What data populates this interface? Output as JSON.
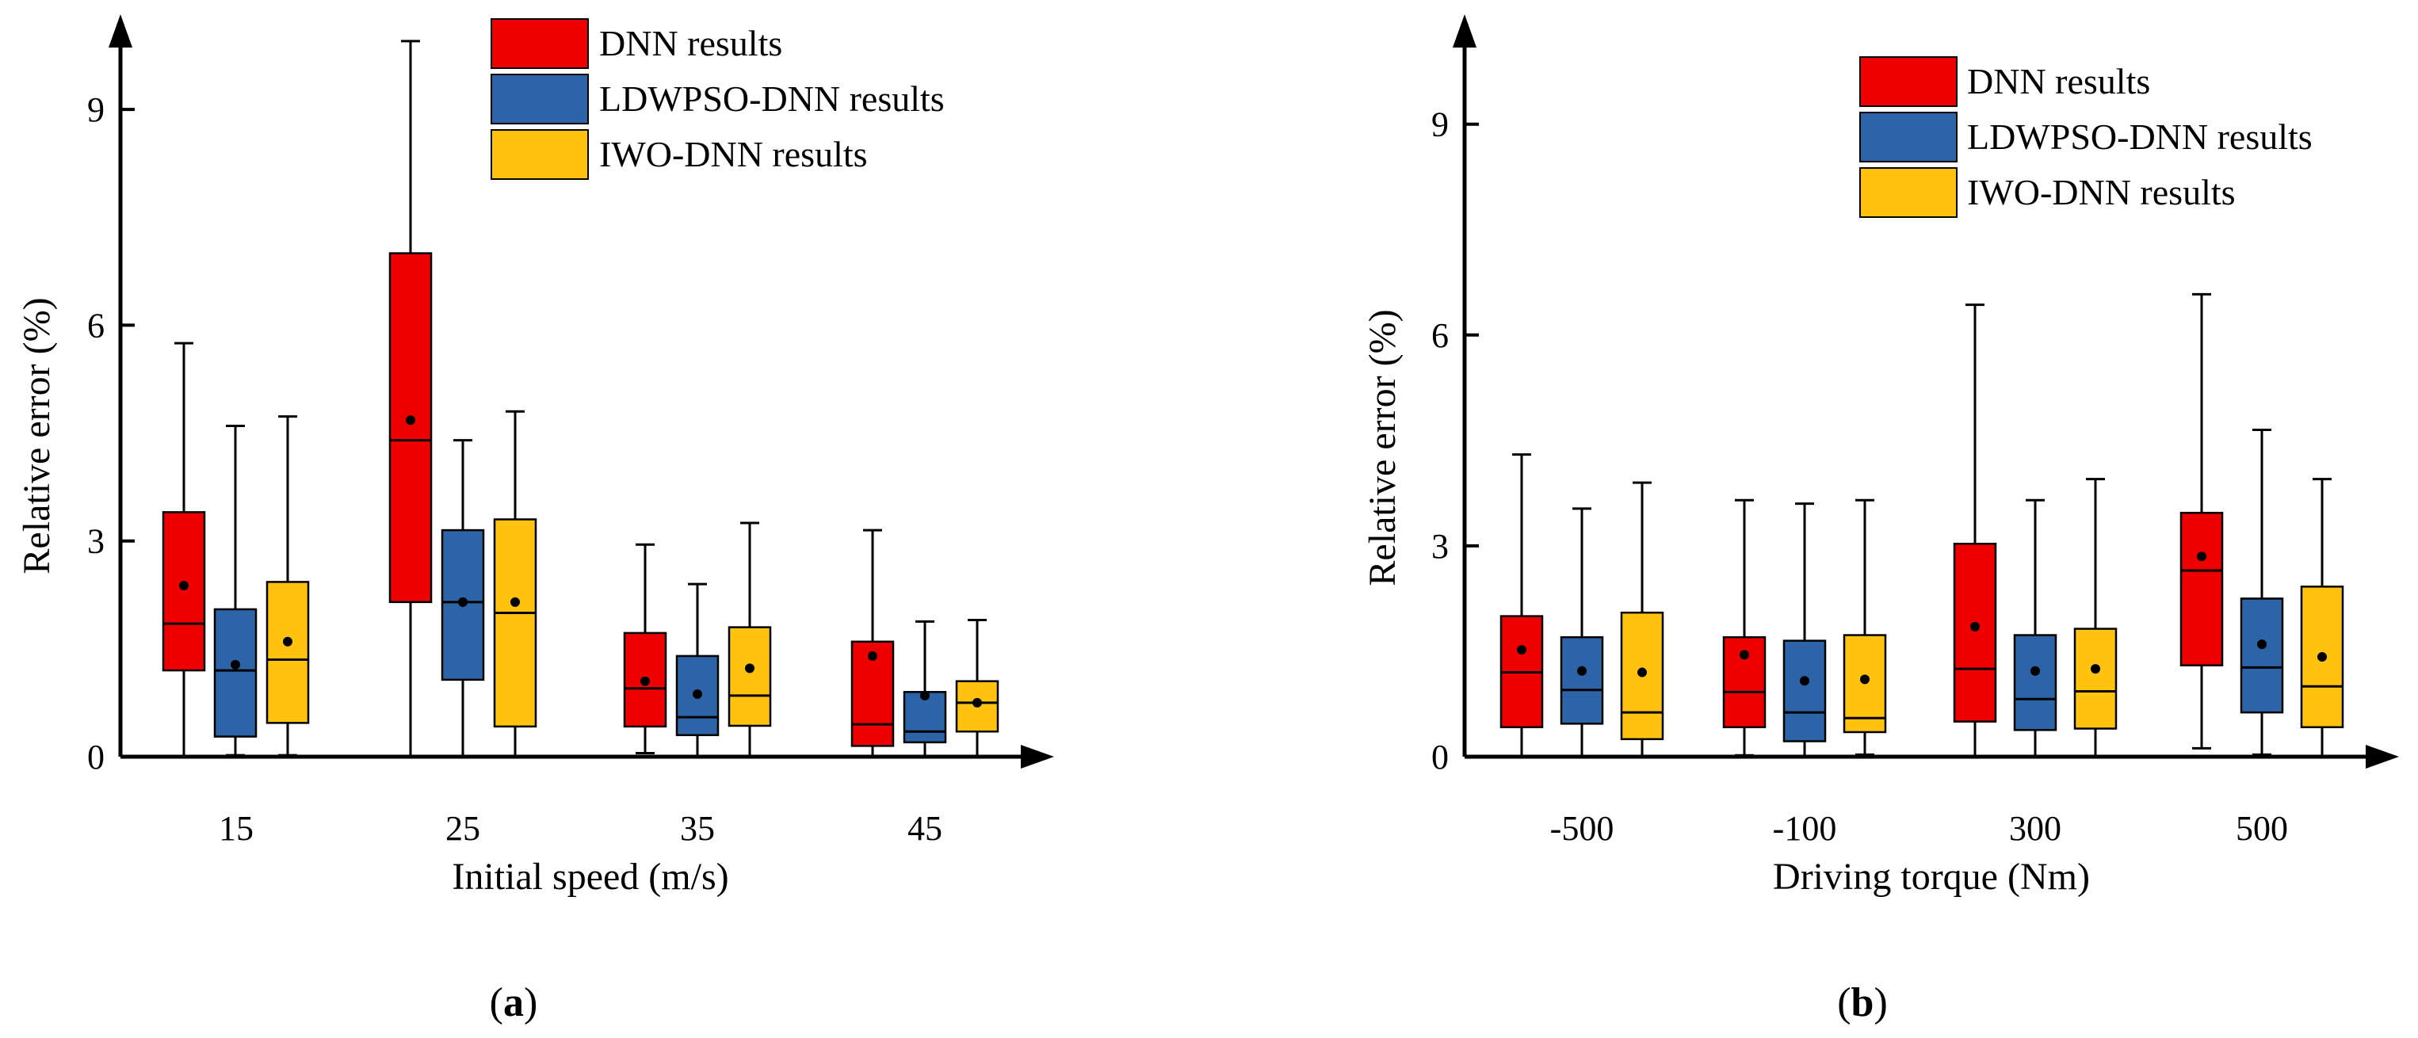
{
  "colors": {
    "red": "#ee0000",
    "blue": "#2d64a7",
    "yellow": "#ffc20e",
    "axis": "#000000"
  },
  "panels": [
    {
      "label": "(a)",
      "label_paren_open": "(",
      "label_letter": "a",
      "label_paren_close": ")"
    },
    {
      "label": "(b)",
      "label_paren_open": "(",
      "label_letter": "b",
      "label_paren_close": ")"
    }
  ],
  "chart_data": [
    {
      "type": "box",
      "title": "",
      "xlabel": "Initial speed (m/s)",
      "ylabel": "Relative error (%)",
      "categories": [
        "15",
        "25",
        "35",
        "45"
      ],
      "ylim": [
        0,
        10
      ],
      "yticks": [
        "0",
        "3",
        "6",
        "9"
      ],
      "grid": false,
      "legend_position": "top-right",
      "series": [
        {
          "name": "DNN results",
          "color": "#ee0000",
          "boxes": [
            {
              "min": 0,
              "q1": 1.2,
              "median": 1.85,
              "q3": 3.4,
              "max": 5.75,
              "mean": 2.38
            },
            {
              "min": 0,
              "q1": 2.15,
              "median": 4.4,
              "q3": 7.0,
              "max": 9.95,
              "mean": 4.68
            },
            {
              "min": 0.05,
              "q1": 0.42,
              "median": 0.95,
              "q3": 1.72,
              "max": 2.95,
              "mean": 1.05
            },
            {
              "min": 0,
              "q1": 0.15,
              "median": 0.45,
              "q3": 1.6,
              "max": 3.15,
              "mean": 1.4
            }
          ]
        },
        {
          "name": "LDWPSO-DNN results",
          "color": "#2d64a7",
          "boxes": [
            {
              "min": 0.02,
              "q1": 0.28,
              "median": 1.2,
              "q3": 2.05,
              "max": 4.6,
              "mean": 1.28
            },
            {
              "min": 0,
              "q1": 1.07,
              "median": 2.15,
              "q3": 3.15,
              "max": 4.4,
              "mean": 2.15
            },
            {
              "min": 0,
              "q1": 0.3,
              "median": 0.55,
              "q3": 1.4,
              "max": 2.4,
              "mean": 0.87
            },
            {
              "min": 0,
              "q1": 0.2,
              "median": 0.35,
              "q3": 0.9,
              "max": 1.88,
              "mean": 0.85
            }
          ]
        },
        {
          "name": "IWO-DNN results",
          "color": "#ffc20e",
          "boxes": [
            {
              "min": 0.02,
              "q1": 0.47,
              "median": 1.35,
              "q3": 2.43,
              "max": 4.73,
              "mean": 1.6
            },
            {
              "min": 0,
              "q1": 0.42,
              "median": 2.0,
              "q3": 3.3,
              "max": 4.8,
              "mean": 2.15
            },
            {
              "min": 0,
              "q1": 0.43,
              "median": 0.85,
              "q3": 1.8,
              "max": 3.25,
              "mean": 1.23
            },
            {
              "min": 0,
              "q1": 0.35,
              "median": 0.75,
              "q3": 1.05,
              "max": 1.9,
              "mean": 0.75
            }
          ]
        }
      ]
    },
    {
      "type": "box",
      "title": "",
      "xlabel": "Driving torque (Nm)",
      "ylabel": "Relative error (%)",
      "categories": [
        "-500",
        "-100",
        "300",
        "500"
      ],
      "ylim": [
        0,
        10
      ],
      "yticks": [
        "0",
        "3",
        "6",
        "9"
      ],
      "grid": false,
      "legend_position": "top-right",
      "series": [
        {
          "name": "DNN results",
          "color": "#ee0000",
          "boxes": [
            {
              "min": 0,
              "q1": 0.42,
              "median": 1.2,
              "q3": 2.0,
              "max": 4.3,
              "mean": 1.52
            },
            {
              "min": 0.02,
              "q1": 0.42,
              "median": 0.92,
              "q3": 1.7,
              "max": 3.65,
              "mean": 1.45
            },
            {
              "min": 0,
              "q1": 0.5,
              "median": 1.25,
              "q3": 3.03,
              "max": 6.43,
              "mean": 1.85
            },
            {
              "min": 0.12,
              "q1": 1.3,
              "median": 2.65,
              "q3": 3.47,
              "max": 6.58,
              "mean": 2.85
            }
          ]
        },
        {
          "name": "LDWPSO-DNN results",
          "color": "#2d64a7",
          "boxes": [
            {
              "min": 0,
              "q1": 0.47,
              "median": 0.95,
              "q3": 1.7,
              "max": 3.53,
              "mean": 1.22
            },
            {
              "min": 0,
              "q1": 0.22,
              "median": 0.63,
              "q3": 1.65,
              "max": 3.6,
              "mean": 1.08
            },
            {
              "min": 0,
              "q1": 0.38,
              "median": 0.82,
              "q3": 1.73,
              "max": 3.65,
              "mean": 1.22
            },
            {
              "min": 0.03,
              "q1": 0.63,
              "median": 1.27,
              "q3": 2.25,
              "max": 4.65,
              "mean": 1.6
            }
          ]
        },
        {
          "name": "IWO-DNN results",
          "color": "#ffc20e",
          "boxes": [
            {
              "min": 0,
              "q1": 0.25,
              "median": 0.63,
              "q3": 2.05,
              "max": 3.9,
              "mean": 1.2
            },
            {
              "min": 0.03,
              "q1": 0.35,
              "median": 0.55,
              "q3": 1.73,
              "max": 3.65,
              "mean": 1.1
            },
            {
              "min": 0,
              "q1": 0.4,
              "median": 0.93,
              "q3": 1.82,
              "max": 3.95,
              "mean": 1.25
            },
            {
              "min": 0,
              "q1": 0.42,
              "median": 1.0,
              "q3": 2.42,
              "max": 3.95,
              "mean": 1.42
            }
          ]
        }
      ]
    }
  ]
}
